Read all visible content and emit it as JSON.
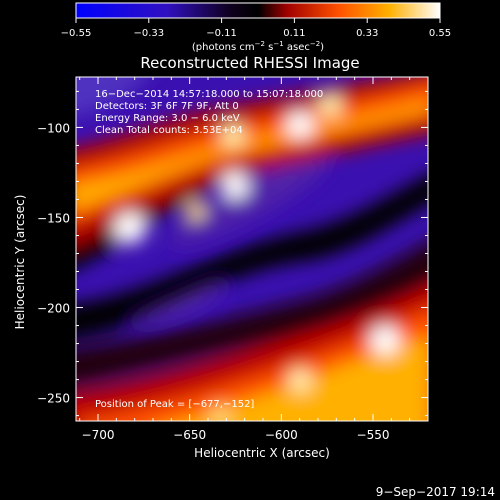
{
  "colorbar": {
    "ticks": [
      "−0.55",
      "−0.33",
      "−0.11",
      "0.11",
      "0.33",
      "0.55"
    ],
    "range": [
      -0.55,
      0.55
    ],
    "units_prefix": "(photons cm",
    "units_exp1": "−2",
    "units_mid": " s",
    "units_exp2": "−1",
    "units_mid2": " asec",
    "units_exp3": "−2",
    "units_suffix": ")",
    "colors": [
      "#0000ff",
      "#4020a0",
      "#000000",
      "#800000",
      "#ff4000",
      "#ffa000",
      "#ffffff"
    ]
  },
  "chart_data": {
    "type": "heatmap",
    "title": "Reconstructed RHESSI Image",
    "xlabel": "Heliocentric X (arcsec)",
    "ylabel": "Heliocentric Y (arcsec)",
    "xlim": [
      -712,
      -520
    ],
    "ylim": [
      -263,
      -72
    ],
    "xticks": [
      -700,
      -650,
      -600,
      -550
    ],
    "xtick_labels": [
      "−700",
      "−650",
      "−600",
      "−550"
    ],
    "yticks": [
      -250,
      -200,
      -150,
      -100
    ],
    "ytick_labels": [
      "−250",
      "−200",
      "−150",
      "−100"
    ],
    "annotations": [
      "16−Dec−2014 14:57:18.000 to 15:07:18.000",
      "Detectors: 3F 6F 7F 9F, Att 0",
      "Energy Range: 3.0 − 6.0 keV",
      "Clean     Total counts: 3.53E+04"
    ],
    "peak_label": "Position of Peak = [−677,−152]",
    "peak": [
      -677,
      -152
    ]
  },
  "footer": {
    "date": "9−Sep−2017 19:14"
  }
}
